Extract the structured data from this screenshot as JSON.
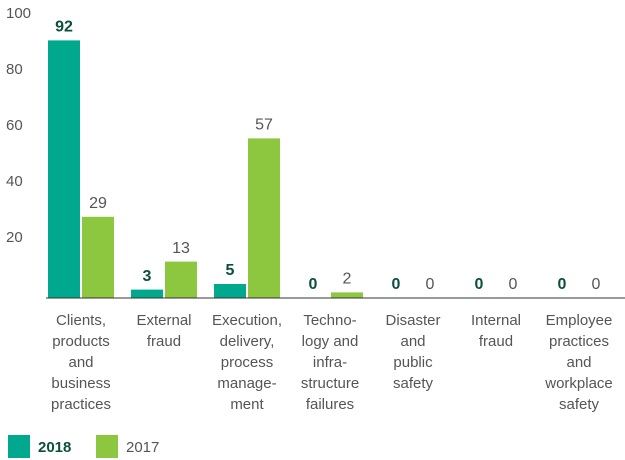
{
  "chart_data": {
    "type": "bar",
    "categories": [
      [
        "Clients,",
        "products",
        "and",
        "business",
        "practices"
      ],
      [
        "External",
        "fraud"
      ],
      [
        "Execution,",
        "delivery,",
        "process",
        "manage-",
        "ment"
      ],
      [
        "Techno-",
        "logy and",
        "infra-",
        "structure",
        "failures"
      ],
      [
        "Disaster",
        "and",
        "public",
        "safety"
      ],
      [
        "Internal",
        "fraud"
      ],
      [
        "Employee",
        "practices",
        "and",
        "workplace",
        "safety"
      ]
    ],
    "series": [
      {
        "name": "2018",
        "color": "#00a88e",
        "label_color": "#0d4f3f",
        "values": [
          92,
          3,
          5,
          0,
          0,
          0,
          0
        ]
      },
      {
        "name": "2017",
        "color": "#8dc63f",
        "label_color": "#555555",
        "values": [
          29,
          13,
          57,
          2,
          0,
          0,
          0
        ]
      }
    ],
    "ylim": [
      0,
      100
    ],
    "yticks": [
      20,
      40,
      60,
      80,
      100
    ]
  }
}
